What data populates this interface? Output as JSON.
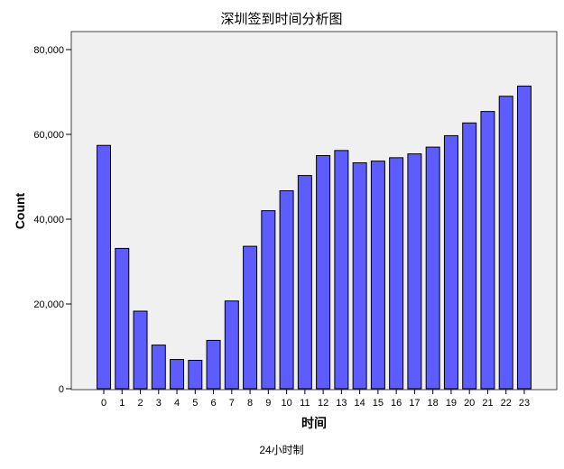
{
  "chart_data": {
    "type": "bar",
    "title": "深圳签到时间分析图",
    "xlabel": "时间",
    "ylabel": "Count",
    "footnote": "24小时制",
    "categories": [
      "0",
      "1",
      "2",
      "3",
      "4",
      "5",
      "6",
      "7",
      "8",
      "9",
      "10",
      "11",
      "12",
      "13",
      "14",
      "15",
      "16",
      "17",
      "18",
      "19",
      "20",
      "21",
      "22",
      "23"
    ],
    "values": [
      57400,
      33100,
      18300,
      10300,
      6900,
      6700,
      11400,
      20700,
      33600,
      42000,
      46700,
      50300,
      55000,
      56200,
      53300,
      53700,
      54500,
      55400,
      57000,
      59700,
      62700,
      65400,
      69000,
      71400
    ],
    "ylim": [
      0,
      80000
    ],
    "yticks": [
      0,
      20000,
      40000,
      60000,
      80000
    ],
    "ytick_labels": [
      "0",
      "20,000",
      "40,000",
      "60,000",
      "80,000"
    ],
    "grid": false,
    "colors": {
      "bar": "#5c5cff",
      "bar_edge": "#000000",
      "plot_bg": "#f0f0f0"
    }
  }
}
